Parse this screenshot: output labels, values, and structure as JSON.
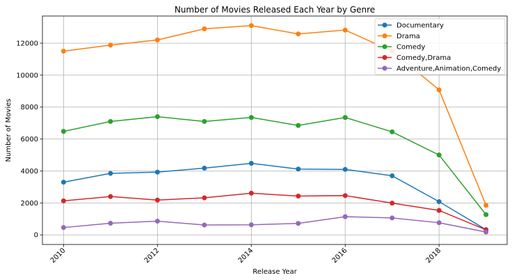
{
  "chart_data": {
    "type": "line",
    "title": "Number of Movies Released Each Year by Genre",
    "xlabel": "Release Year",
    "ylabel": "Number of Movies",
    "xlim": [
      2009.55,
      2019.45
    ],
    "ylim": [
      -600,
      13700
    ],
    "x": [
      2010,
      2011,
      2012,
      2013,
      2014,
      2015,
      2016,
      2017,
      2018,
      2019
    ],
    "x_ticks": [
      2010,
      2012,
      2014,
      2016,
      2018
    ],
    "x_tick_labels": [
      "2010",
      "2012",
      "2014",
      "2016",
      "2018"
    ],
    "y_ticks": [
      0,
      2000,
      4000,
      6000,
      8000,
      10000,
      12000
    ],
    "y_tick_labels": [
      "0",
      "2000",
      "4000",
      "6000",
      "8000",
      "10000",
      "12000"
    ],
    "grid": true,
    "legend_position": "top-right",
    "series": [
      {
        "name": "Documentary",
        "color": "#1f77b4",
        "values": [
          3300,
          3850,
          3930,
          4180,
          4480,
          4120,
          4100,
          3700,
          2080,
          330
        ]
      },
      {
        "name": "Drama",
        "color": "#ff7f0e",
        "values": [
          11500,
          11880,
          12200,
          12900,
          13100,
          12580,
          12820,
          11500,
          9080,
          1850
        ]
      },
      {
        "name": "Comedy",
        "color": "#2ca02c",
        "values": [
          6480,
          7100,
          7400,
          7100,
          7350,
          6850,
          7350,
          6450,
          5000,
          1270
        ]
      },
      {
        "name": "Comedy,Drama",
        "color": "#d62728",
        "values": [
          2130,
          2400,
          2180,
          2320,
          2610,
          2430,
          2460,
          1990,
          1530,
          320
        ]
      },
      {
        "name": "Adventure,Animation,Comedy",
        "color": "#9467bd",
        "values": [
          460,
          730,
          860,
          620,
          630,
          720,
          1140,
          1060,
          760,
          180
        ]
      }
    ]
  }
}
